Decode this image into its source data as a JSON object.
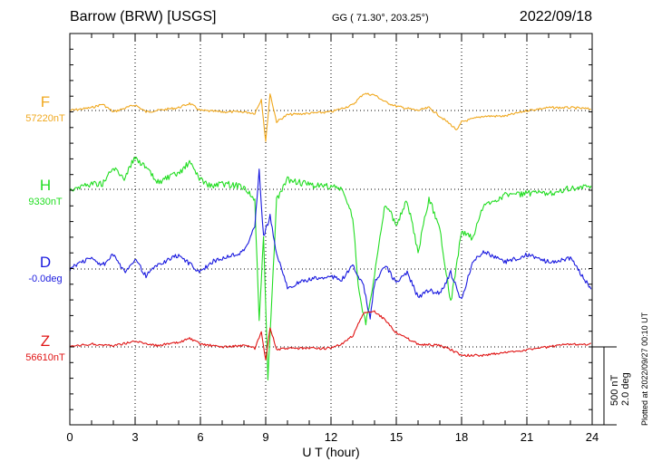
{
  "header": {
    "station": "Barrow (BRW)  [USGS]",
    "coords": "GG ( 71.30°, 203.25°)",
    "date": "2022/09/18"
  },
  "xlabel": "U T (hour)",
  "scale": {
    "line1": "500 nT",
    "line2": "2.0 deg"
  },
  "plotted": "Plotted at 2022/09/27 00:10 UT",
  "chart_data": {
    "type": "line",
    "xlabel": "U T (hour)",
    "xlim": [
      0,
      24
    ],
    "xticks": [
      "0",
      "3",
      "6",
      "9",
      "12",
      "15",
      "18",
      "21",
      "24"
    ],
    "grid": true,
    "series": [
      {
        "name": "F",
        "baseline_label": "57220nT",
        "color": "#f0a81e",
        "x": [
          0,
          1,
          1.5,
          2,
          2.5,
          3,
          3.5,
          4,
          5,
          5.5,
          6,
          7,
          8,
          8.5,
          8.8,
          9,
          9.2,
          9.5,
          10,
          11,
          12,
          13,
          13.5,
          14,
          14.5,
          15,
          16,
          16.5,
          17,
          17.5,
          17.8,
          18,
          19,
          20,
          21,
          22,
          23,
          24
        ],
        "values": [
          0,
          20,
          45,
          -10,
          15,
          40,
          -10,
          0,
          20,
          50,
          0,
          -10,
          -10,
          -20,
          80,
          -220,
          120,
          -80,
          -30,
          -20,
          -10,
          40,
          120,
          110,
          60,
          30,
          0,
          20,
          -40,
          -100,
          -140,
          -80,
          -40,
          -40,
          0,
          20,
          20,
          10
        ]
      },
      {
        "name": "H",
        "baseline_label": "9330nT",
        "color": "#22dd22",
        "x": [
          0,
          1,
          1.5,
          2,
          2.5,
          3,
          3.5,
          4,
          5,
          5.5,
          6,
          6.5,
          7,
          8,
          8.5,
          8.7,
          8.9,
          9.1,
          9.5,
          10,
          11,
          12,
          12.5,
          13,
          13.3,
          13.6,
          14,
          14.5,
          15,
          15.5,
          16,
          16.5,
          17,
          17.5,
          18,
          18.5,
          19,
          20,
          21,
          22,
          23,
          24
        ],
        "values": [
          0,
          40,
          40,
          150,
          80,
          230,
          150,
          50,
          110,
          190,
          70,
          20,
          40,
          20,
          -80,
          -950,
          -320,
          -1350,
          -80,
          70,
          30,
          20,
          0,
          -200,
          -750,
          -950,
          -600,
          -100,
          -250,
          -80,
          -450,
          -60,
          -280,
          -800,
          -300,
          -350,
          -120,
          -40,
          -30,
          -30,
          10,
          10
        ]
      },
      {
        "name": "D",
        "baseline_label": "-0.0deg",
        "color": "#1a1adf",
        "x": [
          0,
          0.5,
          1,
          1.5,
          2,
          2.5,
          3,
          3.5,
          4,
          5,
          6,
          6.5,
          7,
          8,
          8.5,
          8.7,
          8.9,
          9.2,
          9.5,
          10,
          10.5,
          11,
          12,
          12.5,
          13,
          13.5,
          13.8,
          14,
          14.5,
          15,
          15.5,
          16,
          16.5,
          17,
          17.5,
          18,
          18.5,
          19,
          20,
          21,
          22,
          23,
          24
        ],
        "values": [
          0,
          0.2,
          0.3,
          0.1,
          0.4,
          -0.1,
          0.3,
          -0.2,
          0.1,
          0.4,
          -0.1,
          0.2,
          0.3,
          0.5,
          1.2,
          2.8,
          0.9,
          1.5,
          0.4,
          -0.5,
          -0.4,
          -0.3,
          -0.2,
          -0.3,
          0.1,
          -0.5,
          -1.4,
          -0.4,
          0.1,
          -0.4,
          -0.1,
          -0.8,
          -0.6,
          -0.7,
          -0.1,
          -0.9,
          0.2,
          0.5,
          0.2,
          0.4,
          0.2,
          0.3,
          -0.6
        ]
      },
      {
        "name": "Z",
        "baseline_label": "56610nT",
        "color": "#e01414",
        "x": [
          0,
          1,
          2,
          3,
          4,
          5,
          5.5,
          6,
          7,
          8,
          8.5,
          8.8,
          9,
          9.2,
          9.5,
          10,
          11,
          12,
          12.5,
          13,
          13.5,
          14,
          14.5,
          15,
          16,
          17,
          17.5,
          18,
          19,
          20,
          21,
          22,
          23,
          24
        ],
        "values": [
          0,
          20,
          10,
          40,
          10,
          30,
          60,
          20,
          0,
          10,
          -10,
          100,
          -100,
          140,
          -20,
          -10,
          -10,
          -10,
          20,
          80,
          240,
          250,
          190,
          100,
          20,
          10,
          -20,
          -60,
          -60,
          -40,
          -20,
          0,
          20,
          20
        ]
      }
    ]
  }
}
